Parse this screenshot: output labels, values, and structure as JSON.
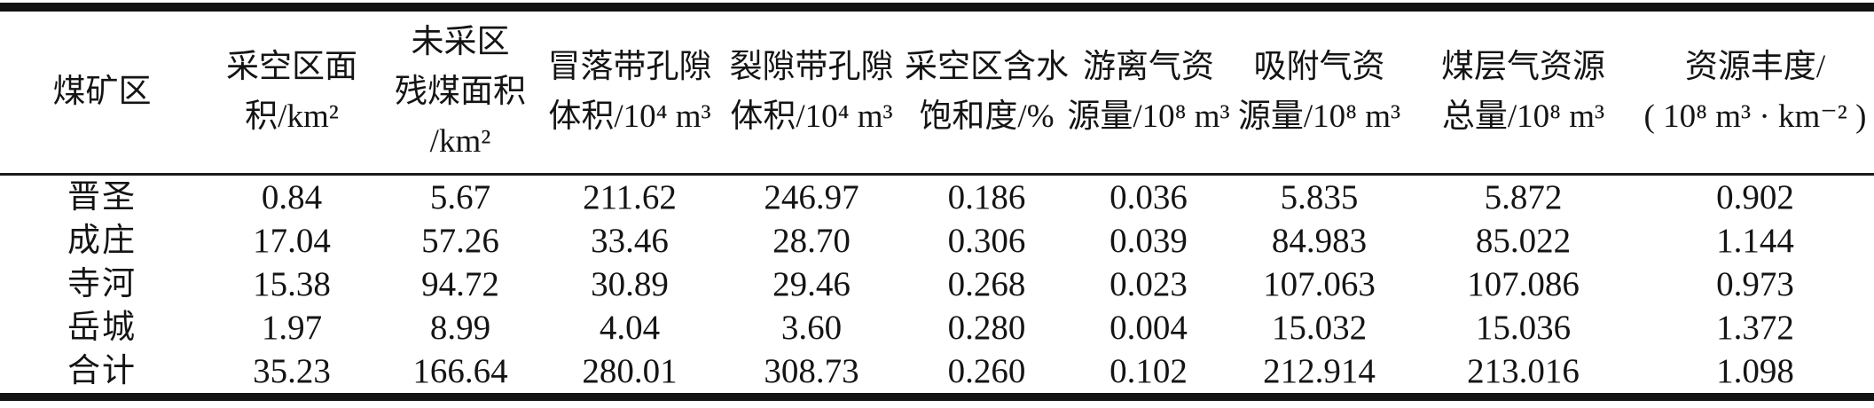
{
  "meta": {
    "kind": "academic-paper-table",
    "language": "zh-CN",
    "description_visible_only": "three-line table of coal mine area coalbed methane resource data"
  },
  "colors": {
    "background": "#ffffff",
    "ink": "#141414",
    "rule": "#131313"
  },
  "table": {
    "columns": [
      {
        "id": "mine-area",
        "lines": [
          "煤矿区"
        ]
      },
      {
        "id": "goaf-area",
        "lines": [
          "采空区面",
          "积/km²"
        ]
      },
      {
        "id": "unmined-coal-area",
        "lines": [
          "未采区",
          "残煤面积",
          "/km²"
        ]
      },
      {
        "id": "caving-zone-pore",
        "lines": [
          "冒落带孔隙",
          "体积/10⁴ m³"
        ]
      },
      {
        "id": "fracture-zone-pore",
        "lines": [
          "裂隙带孔隙",
          "体积/10⁴ m³"
        ]
      },
      {
        "id": "water-saturation",
        "lines": [
          "采空区含水",
          "饱和度/%"
        ]
      },
      {
        "id": "free-gas",
        "lines": [
          "游离气资",
          "源量/10⁸ m³"
        ]
      },
      {
        "id": "adsorbed-gas",
        "lines": [
          "吸附气资",
          "源量/10⁸ m³"
        ]
      },
      {
        "id": "cbm-total",
        "lines": [
          "煤层气资源",
          "总量/10⁸ m³"
        ]
      },
      {
        "id": "resource-abundance",
        "lines": [
          "资源丰度/",
          "( 10⁸ m³ · km⁻² )"
        ]
      }
    ],
    "rows": [
      [
        "晋圣",
        "0.84",
        "5.67",
        "211.62",
        "246.97",
        "0.186",
        "0.036",
        "5.835",
        "5.872",
        "0.902"
      ],
      [
        "成庄",
        "17.04",
        "57.26",
        "33.46",
        "28.70",
        "0.306",
        "0.039",
        "84.983",
        "85.022",
        "1.144"
      ],
      [
        "寺河",
        "15.38",
        "94.72",
        "30.89",
        "29.46",
        "0.268",
        "0.023",
        "107.063",
        "107.086",
        "0.973"
      ],
      [
        "岳城",
        "1.97",
        "8.99",
        "4.04",
        "3.60",
        "0.280",
        "0.004",
        "15.032",
        "15.036",
        "1.372"
      ],
      [
        "合计",
        "35.23",
        "166.64",
        "280.01",
        "308.73",
        "0.260",
        "0.102",
        "212.914",
        "213.016",
        "1.098"
      ]
    ]
  },
  "chart_data": {
    "type": "table",
    "columns": [
      "煤矿区",
      "采空区面积/km²",
      "未采区残煤面积/km²",
      "冒落带孔隙体积/10⁴m³",
      "裂隙带孔隙体积/10⁴m³",
      "采空区含水饱和度/%",
      "游离气资源量/10⁸m³",
      "吸附气资源量/10⁸m³",
      "煤层气资源总量/10⁸m³",
      "资源丰度/(10⁸m³·km⁻²)"
    ],
    "rows": [
      [
        "晋圣",
        0.84,
        5.67,
        211.62,
        246.97,
        0.186,
        0.036,
        5.835,
        5.872,
        0.902
      ],
      [
        "成庄",
        17.04,
        57.26,
        33.46,
        28.7,
        0.306,
        0.039,
        84.983,
        85.022,
        1.144
      ],
      [
        "寺河",
        15.38,
        94.72,
        30.89,
        29.46,
        0.268,
        0.023,
        107.063,
        107.086,
        0.973
      ],
      [
        "岳城",
        1.97,
        8.99,
        4.04,
        3.6,
        0.28,
        0.004,
        15.032,
        15.036,
        1.372
      ],
      [
        "合计",
        35.23,
        166.64,
        280.01,
        308.73,
        0.26,
        0.102,
        212.914,
        213.016,
        1.098
      ]
    ]
  }
}
